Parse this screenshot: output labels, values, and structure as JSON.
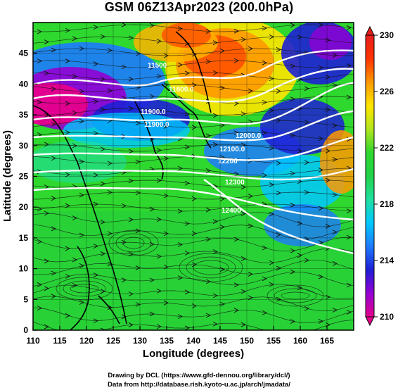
{
  "title": "GSM 06Z13Apr2023 (200.0hPa)",
  "x_axis": {
    "label": "Longitude (degrees)",
    "ticks": [
      "110",
      "115",
      "120",
      "125",
      "130",
      "135",
      "140",
      "145",
      "150",
      "155",
      "160",
      "165"
    ],
    "range": [
      110,
      170
    ]
  },
  "y_axis": {
    "label": "Latitude (degrees)",
    "ticks": [
      "0",
      "5",
      "10",
      "15",
      "20",
      "25",
      "30",
      "35",
      "40",
      "45"
    ],
    "range": [
      0,
      50
    ]
  },
  "colorbar": {
    "ticks": [
      "210",
      "214",
      "218",
      "222",
      "226",
      "230"
    ],
    "range": [
      210,
      230
    ],
    "colors": [
      "#e6008c",
      "#9400d3",
      "#1f1fd6",
      "#1e7bff",
      "#00c8ff",
      "#20e0a0",
      "#22d24a",
      "#2ed82e",
      "#b4e61e",
      "#ffe600",
      "#ff9900",
      "#ff3300",
      "#e61e1e"
    ]
  },
  "contours": {
    "labels": [
      "11500",
      "11800.0",
      "11900.0",
      "11900.0",
      "12000.0",
      "12100.0",
      "12200",
      "12300",
      "12400"
    ]
  },
  "credits": {
    "line1": "Drawing by DCL (https://www.gfd-dennou.org/library/dcl/)",
    "line2": "Data from http://database.rish.kyoto-u.ac.jp/arch/jmadata/"
  }
}
